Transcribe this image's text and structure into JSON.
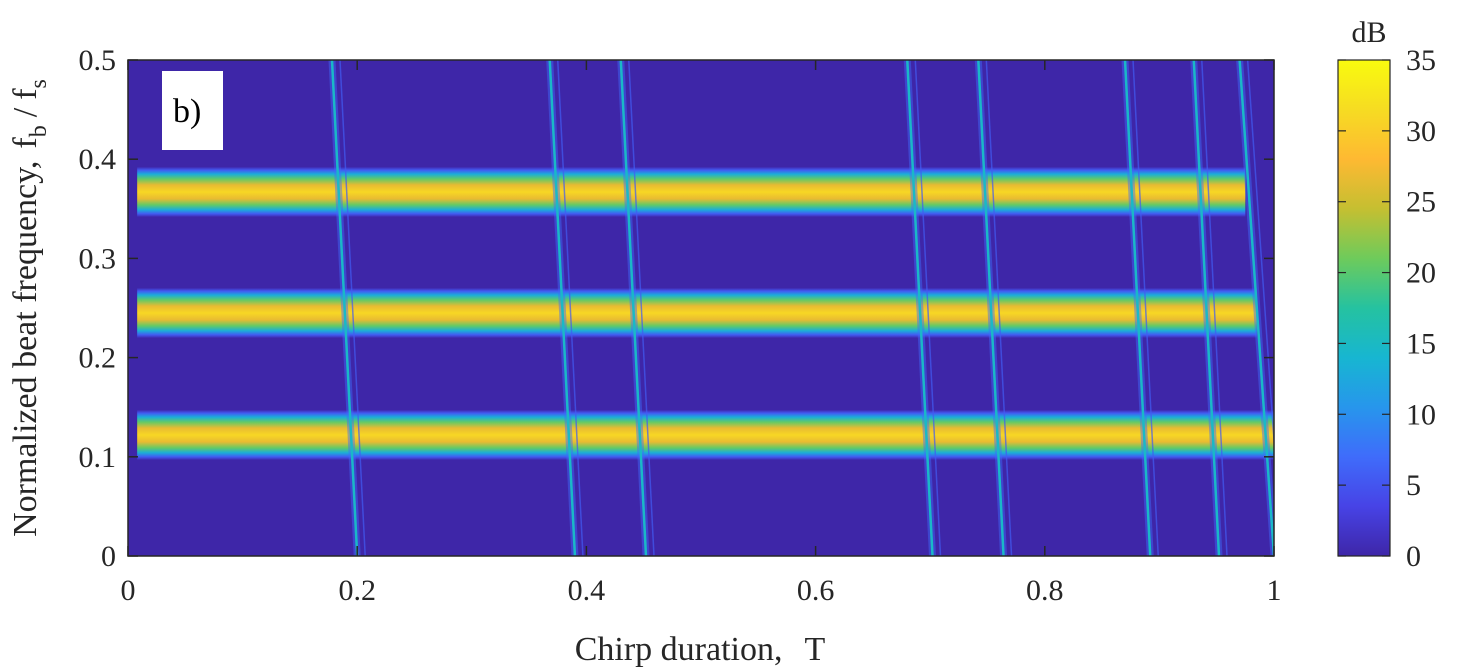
{
  "chart_data": {
    "type": "heatmap",
    "panel_label": "b)",
    "xlabel": {
      "main": "Chirp duration,",
      "symbol": "T"
    },
    "ylabel": {
      "main": "Normalized beat frequency,",
      "f": "f",
      "b": "b",
      "slash": "/",
      "f2": "f",
      "s": "s"
    },
    "xlim": [
      0,
      1
    ],
    "ylim": [
      0,
      0.5
    ],
    "x_ticks": [
      0,
      0.2,
      0.4,
      0.6,
      0.8,
      1
    ],
    "x_tick_labels": [
      "0",
      "0.2",
      "0.4",
      "0.6",
      "0.8",
      "1"
    ],
    "y_ticks": [
      0,
      0.1,
      0.2,
      0.3,
      0.4,
      0.5
    ],
    "y_tick_labels": [
      "0",
      "0.1",
      "0.2",
      "0.3",
      "0.4",
      "0.5"
    ],
    "colorbar": {
      "title": "dB",
      "range": [
        0,
        35
      ],
      "ticks": [
        0,
        5,
        10,
        15,
        20,
        25,
        30,
        35
      ],
      "tick_labels": [
        "0",
        "5",
        "10",
        "15",
        "20",
        "25",
        "30",
        "35"
      ],
      "colormap": [
        "#3e26a8",
        "#4743e6",
        "#3f6cfb",
        "#2796ec",
        "#17b6d1",
        "#25c2a0",
        "#6ecb5b",
        "#c5bf31",
        "#feb932",
        "#f6dc22",
        "#f9fb0e"
      ]
    },
    "background_level_db": 0,
    "bands": [
      {
        "center": 0.367,
        "x_end": 0.975,
        "peak_db": 31
      },
      {
        "center": 0.245,
        "x_end": 0.985,
        "peak_db": 31
      },
      {
        "center": 0.122,
        "x_end": 1.0,
        "peak_db": 31
      }
    ],
    "band_half_width": 0.025,
    "interference_sweeps": [
      {
        "x_at_top": 0.178,
        "x_at_bottom": 0.2
      },
      {
        "x_at_top": 0.368,
        "x_at_bottom": 0.39
      },
      {
        "x_at_top": 0.43,
        "x_at_bottom": 0.452
      },
      {
        "x_at_top": 0.68,
        "x_at_bottom": 0.702
      },
      {
        "x_at_top": 0.742,
        "x_at_bottom": 0.764
      },
      {
        "x_at_top": 0.87,
        "x_at_bottom": 0.892
      },
      {
        "x_at_top": 0.93,
        "x_at_bottom": 0.952
      },
      {
        "x_at_top": 0.97,
        "x_at_bottom": 1.0
      }
    ]
  }
}
